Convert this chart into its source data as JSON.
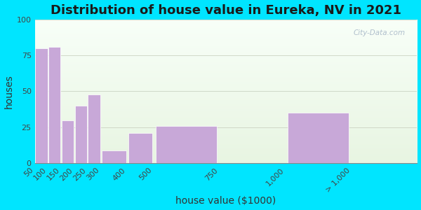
{
  "title": "Distribution of house value in Eureka, NV in 2021",
  "xlabel": "house value ($1000)",
  "ylabel": "houses",
  "tick_positions": [
    50,
    100,
    150,
    200,
    250,
    300,
    400,
    500,
    750,
    1000,
    1250
  ],
  "tick_labels": [
    "50",
    "100",
    "150",
    "200",
    "250",
    "300",
    "400",
    "500",
    "750",
    "1,000",
    "> 1,000"
  ],
  "bar_lefts": [
    50,
    100,
    150,
    200,
    250,
    300,
    400,
    500,
    750,
    1000
  ],
  "bar_widths": [
    50,
    50,
    50,
    50,
    50,
    100,
    100,
    250,
    250,
    250
  ],
  "bar_values": [
    80,
    81,
    30,
    40,
    48,
    9,
    21,
    26,
    0,
    35
  ],
  "bar_color": "#c8a8d8",
  "bar_edge_color": "#ffffff",
  "ylim": [
    0,
    100
  ],
  "yticks": [
    0,
    25,
    50,
    75,
    100
  ],
  "xlim": [
    50,
    1500
  ],
  "bg_outer": "#00e5ff",
  "bg_plot_color": "#e8f5e2",
  "grid_color": "#d0d8c8",
  "title_fontsize": 13,
  "axis_label_fontsize": 10,
  "tick_fontsize": 8,
  "watermark_text": "City-Data.com"
}
